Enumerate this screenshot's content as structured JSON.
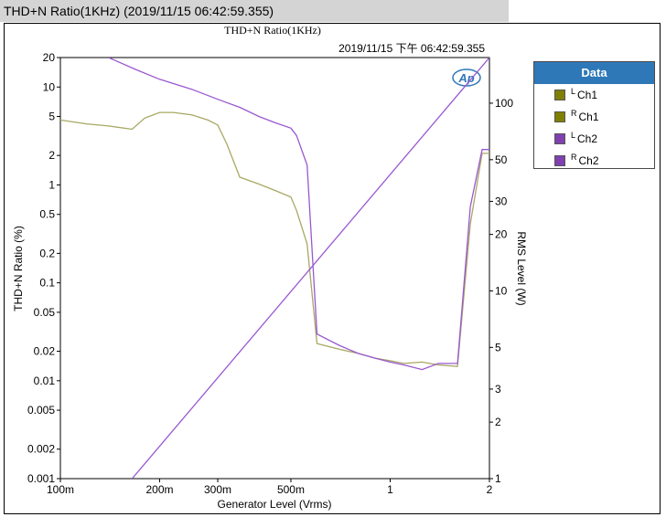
{
  "window": {
    "title": "THD+N Ratio(1KHz) (2019/11/15  06:42:59.355)"
  },
  "legend": {
    "header": "Data",
    "items": [
      {
        "sup": "L",
        "label": "Ch1",
        "color": "#808000"
      },
      {
        "sup": "R",
        "label": "Ch1",
        "color": "#808000"
      },
      {
        "sup": "L",
        "label": "Ch2",
        "color": "#8040b0"
      },
      {
        "sup": "R",
        "label": "Ch2",
        "color": "#8040b0"
      }
    ]
  },
  "chart_data": {
    "type": "line",
    "title": "THD+N Ratio(1KHz)",
    "subtitle": "2019/11/15 下午 06:42:59.355",
    "logo_text": "Ap",
    "xlabel": "Generator Level (Vrms)",
    "ylabel": "THD+N Ratio (%)",
    "y2label": "RMS Level (W)",
    "xscale": "log",
    "yscale": "log",
    "y2scale": "log",
    "xlim": [
      0.1,
      2
    ],
    "ylim": [
      0.001,
      20
    ],
    "y2lim": [
      1,
      175
    ],
    "xticks": [
      0.1,
      0.2,
      0.3,
      0.5,
      1,
      2
    ],
    "xtick_labels": [
      "100m",
      "200m",
      "300m",
      "500m",
      "1",
      "2"
    ],
    "yticks": [
      20,
      10,
      5,
      2,
      1,
      0.5,
      0.2,
      0.1,
      0.05,
      0.02,
      0.01,
      0.005,
      0.002,
      0.001
    ],
    "ytick_labels": [
      "20",
      "10",
      "5",
      "2",
      "1",
      "0.5",
      "0.2",
      "0.1",
      "0.05",
      "0.02",
      "0.01",
      "0.005",
      "0.002",
      "0.001"
    ],
    "y2ticks": [
      100,
      50,
      30,
      20,
      10,
      5,
      3,
      2,
      1
    ],
    "y2tick_labels": [
      "100",
      "50",
      "30",
      "20",
      "10",
      "5",
      "3",
      "2",
      "1"
    ],
    "grid": false,
    "legend_position": "right",
    "series": [
      {
        "name": "Ch1",
        "axis": "left",
        "color": "#a8a864",
        "x": [
          0.1,
          0.12,
          0.14,
          0.165,
          0.18,
          0.2,
          0.22,
          0.25,
          0.28,
          0.3,
          0.32,
          0.35,
          0.4,
          0.45,
          0.5,
          0.52,
          0.56,
          0.6,
          0.7,
          0.8,
          0.9,
          1.0,
          1.1,
          1.25,
          1.4,
          1.6,
          1.75,
          1.9,
          2.0
        ],
        "y": [
          4.6,
          4.2,
          4.0,
          3.7,
          4.8,
          5.5,
          5.5,
          5.2,
          4.6,
          4.1,
          2.6,
          1.2,
          1.02,
          0.87,
          0.75,
          0.55,
          0.25,
          0.024,
          0.021,
          0.019,
          0.017,
          0.016,
          0.015,
          0.0155,
          0.0145,
          0.014,
          0.4,
          2.1,
          2.1
        ]
      },
      {
        "name": "Ch2",
        "axis": "left",
        "color": "#9a58d0",
        "x": [
          0.14,
          0.17,
          0.2,
          0.25,
          0.3,
          0.35,
          0.4,
          0.45,
          0.5,
          0.52,
          0.56,
          0.6,
          0.7,
          0.8,
          0.9,
          1.0,
          1.1,
          1.25,
          1.4,
          1.6,
          1.75,
          1.9,
          2.0
        ],
        "y": [
          20,
          15,
          12,
          9.5,
          7.5,
          6.2,
          5.0,
          4.3,
          3.8,
          3.2,
          1.6,
          0.03,
          0.023,
          0.019,
          0.017,
          0.0155,
          0.0145,
          0.013,
          0.015,
          0.015,
          0.6,
          2.3,
          2.3
        ]
      },
      {
        "name": "RMS Level",
        "axis": "right",
        "color": "#9a58d0",
        "x": [
          0.165,
          2.0
        ],
        "y": [
          1.0,
          175
        ]
      }
    ]
  }
}
